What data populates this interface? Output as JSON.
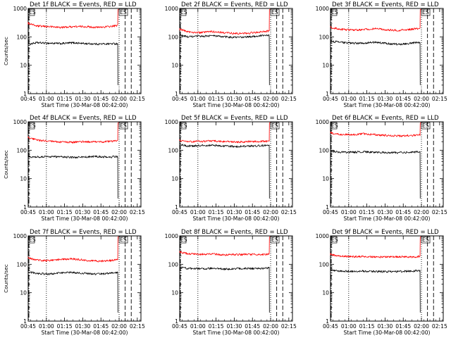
{
  "colors": {
    "background": "#ffffff",
    "events": "#000000",
    "lld": "#ff0000"
  },
  "x_tick_labels": [
    "00:45",
    "01:00",
    "01:15",
    "01:30",
    "01:45",
    "02:00",
    "02:15"
  ],
  "y_tick_labels": [
    "1",
    "10",
    "100",
    "1000"
  ],
  "xlabel": "Start Time (30-Mar-08 00:42:00)",
  "ylabel": "Counts/sec",
  "markers": {
    "start": "ES",
    "end": "ES"
  },
  "chart_data": [
    {
      "type": "line",
      "title": "Det 1f BLACK = Events, RED = LLD",
      "xlabel": "Start Time (30-Mar-08 00:42:00)",
      "ylabel": "Counts/sec",
      "yscale": "log",
      "ylim": [
        1,
        1000
      ],
      "x_unit": "minutes after 00:42:00",
      "xlim": [
        3,
        96
      ],
      "dotted_lines": [
        "01:00",
        "02:00"
      ],
      "dashed_lines": [
        "02:05",
        "02:10"
      ],
      "dash_dot_lines": [
        "00:45"
      ],
      "series": [
        {
          "name": "Events",
          "color": "#000000",
          "x": [
            3,
            10,
            20,
            30,
            40,
            50,
            60,
            70,
            77
          ],
          "y": [
            55,
            62,
            60,
            58,
            62,
            58,
            56,
            57,
            58
          ]
        },
        {
          "name": "LLD",
          "color": "#ff0000",
          "x": [
            3,
            10,
            20,
            30,
            40,
            50,
            60,
            70,
            77
          ],
          "y": [
            300,
            240,
            230,
            215,
            230,
            230,
            215,
            230,
            250
          ]
        }
      ]
    },
    {
      "type": "line",
      "title": "Det 2f BLACK = Events, RED = LLD",
      "xlabel": "Start Time (30-Mar-08 00:42:00)",
      "ylabel": "Counts/sec",
      "yscale": "log",
      "ylim": [
        1,
        1000
      ],
      "x_unit": "minutes after 00:42:00",
      "xlim": [
        3,
        96
      ],
      "dotted_lines": [
        "01:00",
        "02:00"
      ],
      "dashed_lines": [
        "02:05",
        "02:10"
      ],
      "dash_dot_lines": [
        "00:45"
      ],
      "series": [
        {
          "name": "Events",
          "color": "#000000",
          "x": [
            3,
            10,
            20,
            30,
            40,
            50,
            60,
            70,
            77
          ],
          "y": [
            115,
            100,
            105,
            110,
            100,
            95,
            100,
            110,
            115
          ]
        },
        {
          "name": "LLD",
          "color": "#ff0000",
          "x": [
            3,
            10,
            20,
            30,
            40,
            50,
            60,
            70,
            77
          ],
          "y": [
            185,
            150,
            140,
            155,
            140,
            130,
            135,
            150,
            160
          ]
        }
      ]
    },
    {
      "type": "line",
      "title": "Det 3f BLACK = Events, RED = LLD",
      "xlabel": "Start Time (30-Mar-08 00:42:00)",
      "ylabel": "Counts/sec",
      "yscale": "log",
      "ylim": [
        1,
        1000
      ],
      "x_unit": "minutes after 00:42:00",
      "xlim": [
        3,
        96
      ],
      "dotted_lines": [
        "01:00",
        "02:00"
      ],
      "dashed_lines": [
        "02:05",
        "02:10"
      ],
      "dash_dot_lines": [
        "00:45"
      ],
      "series": [
        {
          "name": "Events",
          "color": "#000000",
          "x": [
            3,
            10,
            20,
            30,
            40,
            50,
            60,
            70,
            77
          ],
          "y": [
            70,
            65,
            60,
            60,
            65,
            58,
            55,
            60,
            65
          ]
        },
        {
          "name": "LLD",
          "color": "#ff0000",
          "x": [
            3,
            10,
            20,
            30,
            40,
            50,
            60,
            70,
            77
          ],
          "y": [
            220,
            185,
            175,
            180,
            195,
            175,
            170,
            185,
            200
          ]
        }
      ]
    },
    {
      "type": "line",
      "title": "Det 4f BLACK = Events, RED = LLD",
      "xlabel": "Start Time (30-Mar-08 00:42:00)",
      "ylabel": "Counts/sec",
      "yscale": "log",
      "ylim": [
        1,
        1000
      ],
      "x_unit": "minutes after 00:42:00",
      "xlim": [
        3,
        96
      ],
      "dotted_lines": [
        "01:00",
        "02:00"
      ],
      "dashed_lines": [
        "02:05",
        "02:10"
      ],
      "dash_dot_lines": [
        "00:45"
      ],
      "series": [
        {
          "name": "Events",
          "color": "#000000",
          "x": [
            3,
            10,
            20,
            30,
            40,
            50,
            60,
            70,
            77
          ],
          "y": [
            60,
            58,
            60,
            58,
            56,
            58,
            60,
            58,
            60
          ]
        },
        {
          "name": "LLD",
          "color": "#ff0000",
          "x": [
            3,
            10,
            20,
            30,
            40,
            50,
            60,
            70,
            77
          ],
          "y": [
            280,
            230,
            205,
            195,
            190,
            200,
            195,
            205,
            215
          ]
        }
      ]
    },
    {
      "type": "line",
      "title": "Det 5f BLACK = Events, RED = LLD",
      "xlabel": "Start Time (30-Mar-08 00:42:00)",
      "ylabel": "Counts/sec",
      "yscale": "log",
      "ylim": [
        1,
        1000
      ],
      "x_unit": "minutes after 00:42:00",
      "xlim": [
        3,
        96
      ],
      "dotted_lines": [
        "01:00",
        "02:00"
      ],
      "dashed_lines": [
        "02:05",
        "02:10"
      ],
      "dash_dot_lines": [
        "00:45"
      ],
      "series": [
        {
          "name": "Events",
          "color": "#000000",
          "x": [
            3,
            10,
            20,
            30,
            40,
            50,
            60,
            70,
            77
          ],
          "y": [
            160,
            140,
            145,
            150,
            140,
            135,
            140,
            145,
            150
          ]
        },
        {
          "name": "LLD",
          "color": "#ff0000",
          "x": [
            3,
            10,
            20,
            30,
            40,
            50,
            60,
            70,
            77
          ],
          "y": [
            220,
            200,
            205,
            215,
            200,
            195,
            200,
            205,
            210
          ]
        }
      ]
    },
    {
      "type": "line",
      "title": "Det 6f BLACK = Events, RED = LLD",
      "xlabel": "Start Time (30-Mar-08 00:42:00)",
      "ylabel": "Counts/sec",
      "yscale": "log",
      "ylim": [
        1,
        1000
      ],
      "x_unit": "minutes after 00:42:00",
      "xlim": [
        3,
        96
      ],
      "dotted_lines": [
        "01:00",
        "02:00"
      ],
      "dashed_lines": [
        "02:05",
        "02:10"
      ],
      "dash_dot_lines": [
        "00:45"
      ],
      "series": [
        {
          "name": "Events",
          "color": "#000000",
          "x": [
            3,
            10,
            20,
            30,
            40,
            50,
            60,
            70,
            77
          ],
          "y": [
            95,
            85,
            85,
            88,
            85,
            82,
            82,
            85,
            90
          ]
        },
        {
          "name": "LLD",
          "color": "#ff0000",
          "x": [
            3,
            10,
            20,
            30,
            40,
            50,
            60,
            70,
            77
          ],
          "y": [
            410,
            360,
            350,
            380,
            350,
            330,
            320,
            330,
            340
          ]
        }
      ]
    },
    {
      "type": "line",
      "title": "Det 7f BLACK = Events, RED = LLD",
      "xlabel": "Start Time (30-Mar-08 00:42:00)",
      "ylabel": "Counts/sec",
      "yscale": "log",
      "ylim": [
        1,
        1000
      ],
      "x_unit": "minutes after 00:42:00",
      "xlim": [
        3,
        96
      ],
      "dotted_lines": [
        "01:00",
        "02:00"
      ],
      "dashed_lines": [
        "02:05",
        "02:10"
      ],
      "dash_dot_lines": [
        "00:45"
      ],
      "series": [
        {
          "name": "Events",
          "color": "#000000",
          "x": [
            3,
            10,
            20,
            30,
            40,
            50,
            60,
            70,
            77
          ],
          "y": [
            55,
            48,
            45,
            50,
            52,
            48,
            45,
            48,
            52
          ]
        },
        {
          "name": "LLD",
          "color": "#ff0000",
          "x": [
            3,
            10,
            20,
            30,
            40,
            50,
            60,
            70,
            77
          ],
          "y": [
            170,
            140,
            135,
            150,
            155,
            140,
            130,
            135,
            145
          ]
        }
      ]
    },
    {
      "type": "line",
      "title": "Det 8f BLACK = Events, RED = LLD",
      "xlabel": "Start Time (30-Mar-08 00:42:00)",
      "ylabel": "Counts/sec",
      "yscale": "log",
      "ylim": [
        1,
        1000
      ],
      "x_unit": "minutes after 00:42:00",
      "xlim": [
        3,
        96
      ],
      "dotted_lines": [
        "01:00",
        "02:00"
      ],
      "dashed_lines": [
        "02:05",
        "02:10"
      ],
      "dash_dot_lines": [
        "00:45"
      ],
      "series": [
        {
          "name": "Events",
          "color": "#000000",
          "x": [
            3,
            10,
            20,
            30,
            40,
            50,
            60,
            70,
            77
          ],
          "y": [
            78,
            72,
            70,
            72,
            68,
            70,
            72,
            70,
            75
          ]
        },
        {
          "name": "LLD",
          "color": "#ff0000",
          "x": [
            3,
            10,
            20,
            30,
            40,
            50,
            60,
            70,
            77
          ],
          "y": [
            270,
            235,
            225,
            230,
            215,
            220,
            225,
            220,
            230
          ]
        }
      ]
    },
    {
      "type": "line",
      "title": "Det 9f BLACK = Events, RED = LLD",
      "xlabel": "Start Time (30-Mar-08 00:42:00)",
      "ylabel": "Counts/sec",
      "yscale": "log",
      "ylim": [
        1,
        1000
      ],
      "x_unit": "minutes after 00:42:00",
      "xlim": [
        3,
        96
      ],
      "dotted_lines": [
        "01:00",
        "02:00"
      ],
      "dashed_lines": [
        "02:05",
        "02:10"
      ],
      "dash_dot_lines": [
        "00:45"
      ],
      "series": [
        {
          "name": "Events",
          "color": "#000000",
          "x": [
            3,
            10,
            20,
            30,
            40,
            50,
            60,
            70,
            77
          ],
          "y": [
            62,
            58,
            56,
            58,
            56,
            55,
            56,
            58,
            60
          ]
        },
        {
          "name": "LLD",
          "color": "#ff0000",
          "x": [
            3,
            10,
            20,
            30,
            40,
            50,
            60,
            70,
            77
          ],
          "y": [
            225,
            195,
            185,
            190,
            180,
            180,
            185,
            180,
            190
          ]
        }
      ]
    }
  ]
}
